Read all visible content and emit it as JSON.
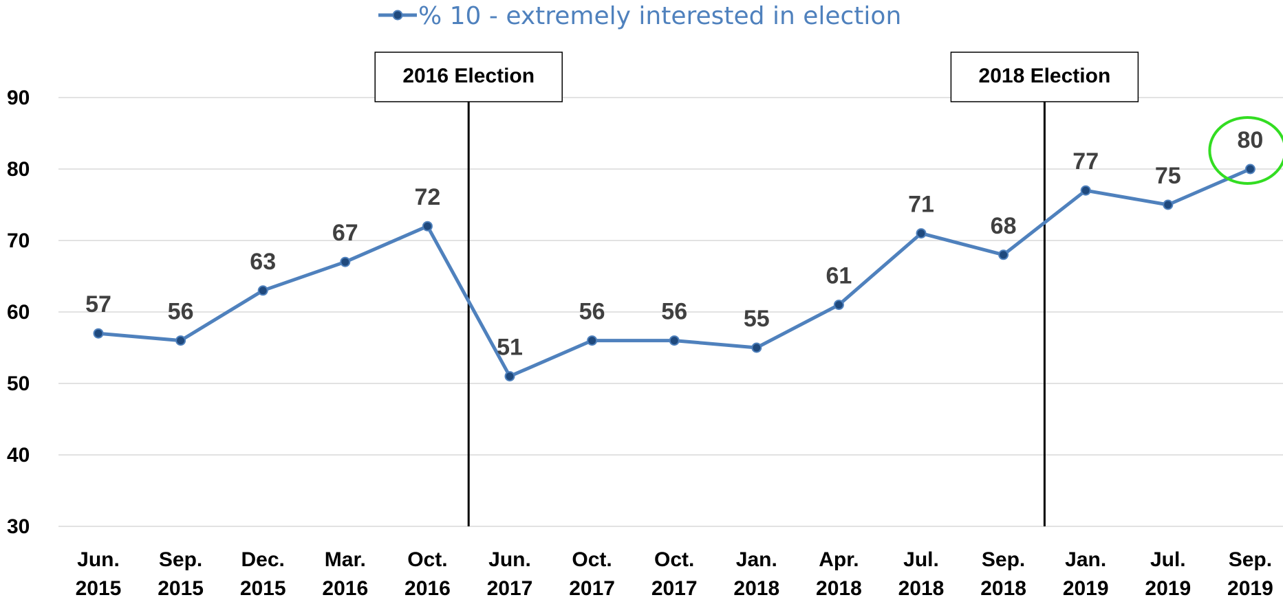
{
  "chart_data": {
    "type": "line",
    "categories": [
      [
        "Jun.",
        "2015"
      ],
      [
        "Sep.",
        "2015"
      ],
      [
        "Dec.",
        "2015"
      ],
      [
        "Mar.",
        "2016"
      ],
      [
        "Oct.",
        "2016"
      ],
      [
        "Jun.",
        "2017"
      ],
      [
        "Oct.",
        "2017"
      ],
      [
        "Oct.",
        "2017"
      ],
      [
        "Jan.",
        "2018"
      ],
      [
        "Apr.",
        "2018"
      ],
      [
        "Jul.",
        "2018"
      ],
      [
        "Sep.",
        "2018"
      ],
      [
        "Jan.",
        "2019"
      ],
      [
        "Jul.",
        "2019"
      ],
      [
        "Sep.",
        "2019"
      ]
    ],
    "series": [
      {
        "name": "% 10 - extremely interested in election",
        "values": [
          57,
          56,
          63,
          67,
          72,
          51,
          56,
          56,
          55,
          61,
          71,
          68,
          77,
          75,
          80
        ],
        "color": "#4f81bd",
        "marker_color": "#1f497d"
      }
    ],
    "yticks": [
      30,
      40,
      50,
      60,
      70,
      80,
      90
    ],
    "ylim": [
      30,
      95
    ],
    "grid": true,
    "legend_position": "top-center",
    "annotations": [
      {
        "label": "2016 Election",
        "between": [
          4,
          5
        ]
      },
      {
        "label": "2018 Election",
        "between": [
          11,
          12
        ]
      }
    ],
    "highlight": {
      "index": 14,
      "color": "#33dd22"
    }
  }
}
